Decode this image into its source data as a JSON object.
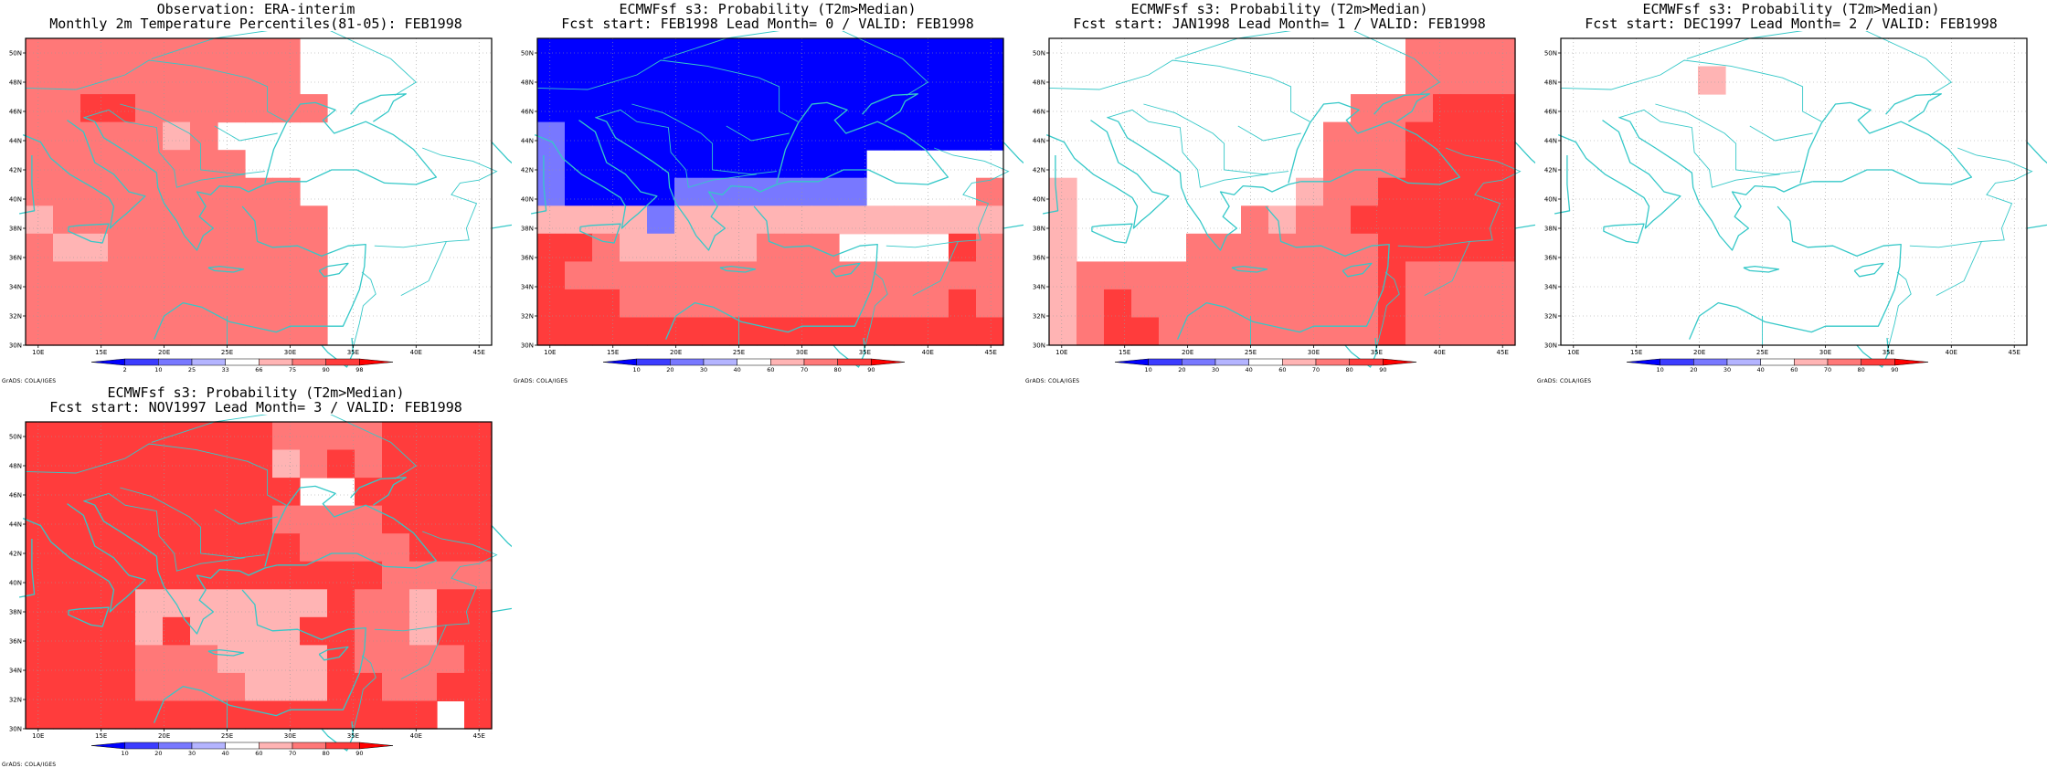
{
  "map_data": {
    "lon_range": [
      9,
      46
    ],
    "lat_range": [
      30,
      51
    ],
    "lon_ticks": [
      "10E",
      "15E",
      "20E",
      "25E",
      "30E",
      "35E",
      "40E",
      "45E"
    ],
    "lat_ticks": [
      "30N",
      "32N",
      "34N",
      "36N",
      "38N",
      "40N",
      "42N",
      "44N",
      "46N",
      "48N",
      "50N"
    ],
    "coastline_color": "#35c8c8",
    "grid": "dotted"
  },
  "panels": [
    {
      "title1": "Observation: ERA-interim",
      "title2": "Monthly 2m Temperature Percentiles(81-05): FEB1998",
      "colorbar": {
        "labels": [
          "2",
          "10",
          "25",
          "33",
          "66",
          "75",
          "90",
          "98"
        ],
        "colors": [
          "#0000ff",
          "#3c3cff",
          "#7878ff",
          "#b4b4ff",
          "#ffffff",
          "#ffb4b4",
          "#ff7878",
          "#ff3c3c",
          "#ff0000"
        ]
      },
      "credit": "GrADS: COLA/IGES",
      "grid_rows": [
        "llllllllllwwwwwww",
        "llllllllllwwwwwww",
        "llkklllllllwwwwww",
        "lllllmlwwwwwwwwww",
        "llllllllwwwwwwwww",
        "llllllllllwwwwwww",
        "mllllllllllwwwwww",
        "lmmllllllllwwwwww",
        "lllllllllllwwwwww",
        "lllllllllllwwwwww",
        "lllllllllllwwwwww"
      ]
    },
    {
      "title1": "ECMWFsf s3: Probability (T2m>Median)",
      "title2": "Fcst start: FEB1998  Lead Month= 0 / VALID: FEB1998",
      "colorbar": {
        "labels": [
          "10",
          "20",
          "30",
          "40",
          "60",
          "70",
          "80",
          "90"
        ],
        "colors": [
          "#0000ff",
          "#3c3cff",
          "#7878ff",
          "#b4b4ff",
          "#ffffff",
          "#ffb4b4",
          "#ff7878",
          "#ff3c3c",
          "#ff0000"
        ]
      },
      "credit": "GrADS: COLA/IGES",
      "grid_rows": [
        "BBBBBBBBBBBBBBBBB",
        "BBBBBBBBBBBBBBBBB",
        "BBBBBBBBBBBBBBBBB",
        "cBBBBBBBBBBBBBBBB",
        "cBBBBBBBBBBBwwwww",
        "cBBBBcccccccwwwwl",
        "mmmmcmmmmmmmmmmmm",
        "kklmmmmmlllwwwwkl",
        "kllllllllllllllll",
        "kkkllllllllllllkl",
        "kkkkkkkkkkkkkkkkk"
      ]
    },
    {
      "title1": "ECMWFsf s3: Probability (T2m>Median)",
      "title2": "Fcst start: JAN1998  Lead Month= 1 / VALID: FEB1998",
      "colorbar": {
        "labels": [
          "10",
          "20",
          "30",
          "40",
          "60",
          "70",
          "80",
          "90"
        ],
        "colors": [
          "#0000ff",
          "#3c3cff",
          "#7878ff",
          "#b4b4ff",
          "#ffffff",
          "#ffb4b4",
          "#ff7878",
          "#ff3c3c",
          "#ff0000"
        ]
      },
      "credit": "GrADS: COLA/IGES",
      "grid_rows": [
        "wwwwwwwwwwwwwllll",
        "wwwwwwwwwwwwwllll",
        "wwwwwwwwwwwlllkkk",
        "wwwwwwwwwwlllkkkk",
        "wwwwwwwwwwlllkkkk",
        "mwwwwwwwwmllkkkkk",
        "mwwwwwwlmllkkkkkk",
        "mwwwwlllllllkkkkk",
        "mlllllllllllkllll",
        "mlklllllllllkllll",
        "mlkkllllllllkllll"
      ]
    },
    {
      "title1": "ECMWFsf s3: Probability (T2m>Median)",
      "title2": "Fcst start: DEC1997  Lead Month= 2 / VALID: FEB1998",
      "colorbar": {
        "labels": [
          "10",
          "20",
          "30",
          "40",
          "60",
          "70",
          "80",
          "90"
        ],
        "colors": [
          "#0000ff",
          "#3c3cff",
          "#7878ff",
          "#b4b4ff",
          "#ffffff",
          "#ffb4b4",
          "#ff7878",
          "#ff3c3c",
          "#ff0000"
        ]
      },
      "credit": "GrADS: COLA/IGES",
      "grid_rows": [
        "wwwwwwwwwwwwwwwww",
        "wwwwwmwwwwwwwwwww",
        "wwwwwwwwwwwwwwwww",
        "wwwwwwwwwwwwwwwww",
        "wwwwwwwwwwwwwwwww",
        "wwwwwwwwwwwwwwwww",
        "wwwwwwwwwwwwwwwww",
        "wwwwwwwwwwwwwwwww",
        "wwwwwwwwwwwwwwwww",
        "wwwwwwwwwwwwwwwww",
        "wwwwwwwwwwwwwwwww"
      ]
    },
    {
      "title1": "ECMWFsf s3: Probability (T2m>Median)",
      "title2": "Fcst start: NOV1997  Lead Month= 3 / VALID: FEB1998",
      "colorbar": {
        "labels": [
          "10",
          "20",
          "30",
          "40",
          "60",
          "70",
          "80",
          "90"
        ],
        "colors": [
          "#0000ff",
          "#3c3cff",
          "#7878ff",
          "#b4b4ff",
          "#ffffff",
          "#ffb4b4",
          "#ff7878",
          "#ff3c3c",
          "#ff0000"
        ]
      },
      "credit": "GrADS: COLA/IGES",
      "grid_rows": [
        "kkkkkkkkkllllkkkk",
        "kkkkkkkkkmlklkkkk",
        "kkkkkkkkkkwwkkkkk",
        "kkkkkkkkkllllkkkk",
        "kkkkkkkkkkllllkkk",
        "kkkkkkkkkkkkkllll",
        "kkkkmmmmmmmkllmkk",
        "kkkkmkmmmmkkllmkk",
        "kkkklllmmmmkllllk",
        "kkkkllllmmmkkllkk",
        "kkkkkkkkkkkkkkkwk"
      ]
    }
  ]
}
